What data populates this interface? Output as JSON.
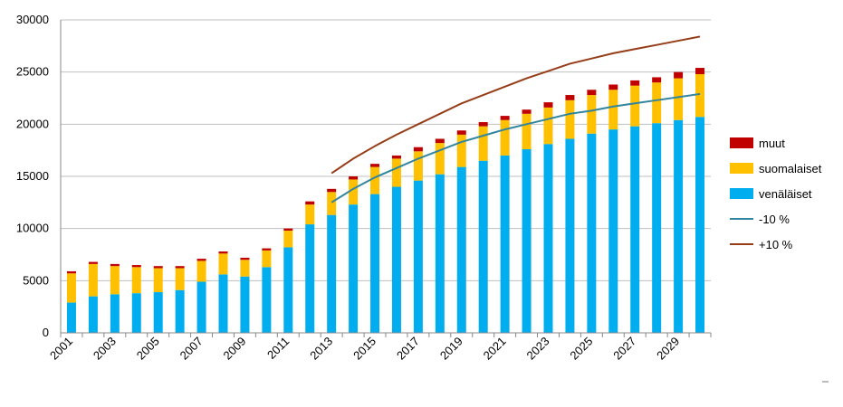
{
  "chart_data": {
    "type": "bar",
    "stacked": true,
    "x": [
      "2001",
      "2002",
      "2003",
      "2004",
      "2005",
      "2006",
      "2007",
      "2008",
      "2009",
      "2010",
      "2011",
      "2012",
      "2013",
      "2014",
      "2015",
      "2016",
      "2017",
      "2018",
      "2019",
      "2020",
      "2021",
      "2022",
      "2023",
      "2024",
      "2025",
      "2026",
      "2027",
      "2028",
      "2029",
      "2030"
    ],
    "x_tick_labels": [
      "2001",
      "2003",
      "2005",
      "2007",
      "2009",
      "2011",
      "2013",
      "2015",
      "2017",
      "2019",
      "2021",
      "2023",
      "2025",
      "2027",
      "2029"
    ],
    "ylim": [
      0,
      30000
    ],
    "y_ticks": [
      "0",
      "5000",
      "10000",
      "15000",
      "20000",
      "25000",
      "30000"
    ],
    "grid": "horizontal",
    "legend_position": "right",
    "series": [
      {
        "name": "venäläiset",
        "kind": "bar",
        "color": "#00AEEF",
        "values": [
          2900,
          3500,
          3700,
          3800,
          3900,
          4100,
          4900,
          5600,
          5400,
          6300,
          8200,
          10400,
          11300,
          12300,
          13300,
          14000,
          14600,
          15200,
          15900,
          16500,
          17000,
          17600,
          18100,
          18600,
          19100,
          19500,
          19800,
          20100,
          20400,
          20700
        ]
      },
      {
        "name": "suomalaiset",
        "kind": "bar",
        "color": "#FFC000",
        "values": [
          2800,
          3100,
          2700,
          2500,
          2300,
          2100,
          2000,
          2000,
          1600,
          1600,
          1600,
          1900,
          2200,
          2400,
          2600,
          2700,
          2800,
          3000,
          3100,
          3300,
          3400,
          3400,
          3500,
          3700,
          3700,
          3800,
          3900,
          3900,
          4000,
          4100
        ]
      },
      {
        "name": "muut",
        "kind": "bar",
        "color": "#C00000",
        "values": [
          200,
          200,
          200,
          200,
          200,
          200,
          200,
          200,
          200,
          200,
          200,
          300,
          300,
          300,
          300,
          300,
          400,
          400,
          400,
          400,
          400,
          400,
          500,
          500,
          500,
          500,
          500,
          500,
          600,
          600
        ]
      },
      {
        "name": "-10 %",
        "kind": "line",
        "color": "#31859C",
        "x": [
          "2013",
          "2014",
          "2015",
          "2016",
          "2017",
          "2018",
          "2019",
          "2020",
          "2021",
          "2022",
          "2023",
          "2024",
          "2025",
          "2026",
          "2027",
          "2028",
          "2029",
          "2030"
        ],
        "values": [
          12500,
          13800,
          14900,
          15800,
          16700,
          17500,
          18300,
          18900,
          19500,
          20000,
          20500,
          21000,
          21300,
          21700,
          22000,
          22300,
          22600,
          22900
        ]
      },
      {
        "name": "+10 %",
        "kind": "line",
        "color": "#963C17",
        "x": [
          "2013",
          "2014",
          "2015",
          "2016",
          "2017",
          "2018",
          "2019",
          "2020",
          "2021",
          "2022",
          "2023",
          "2024",
          "2025",
          "2026",
          "2027",
          "2028",
          "2029",
          "2030"
        ],
        "values": [
          15300,
          16700,
          17900,
          19000,
          20000,
          21000,
          22000,
          22800,
          23600,
          24400,
          25100,
          25800,
          26300,
          26800,
          27200,
          27600,
          28000,
          28400
        ]
      }
    ],
    "legend_order": [
      "muut",
      "suomalaiset",
      "venäläiset",
      "-10 %",
      "+10 %"
    ]
  }
}
